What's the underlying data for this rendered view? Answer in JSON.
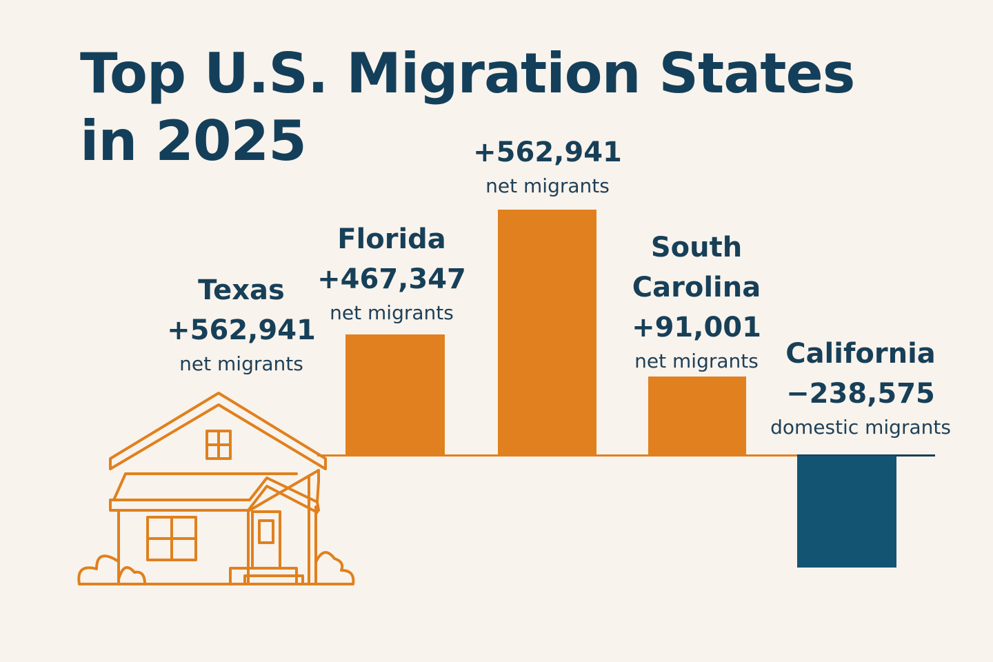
{
  "chart_data": {
    "type": "bar",
    "title": "Top U.S. Migration States in 2025",
    "title_lines": [
      "Top U.S. Migration States",
      "in 2025"
    ],
    "labels": [
      {
        "name": "Texas",
        "value_label": "+562,941",
        "unit": "net migrants",
        "value": 562941,
        "bar": false
      },
      {
        "name": "Florida",
        "value_label": "+467,347",
        "unit": "net migrants",
        "value": 467347,
        "bar": true
      },
      {
        "name": "",
        "value_label": "+562,941",
        "unit": "net migrants",
        "value": 562941,
        "bar": true
      },
      {
        "name_lines": [
          "South",
          "Carolina"
        ],
        "value_label": "+91,001",
        "unit": "net migrants",
        "value": 91001,
        "bar": true
      },
      {
        "name": "California",
        "value_label": "−238,575",
        "unit": "domestic migrants",
        "value": -238575,
        "bar": true
      }
    ],
    "xlabel": "",
    "ylabel": "",
    "grid": false,
    "legend": "none",
    "colors": {
      "positive": "#e0801e",
      "negative": "#135473",
      "text": "#173f58",
      "background": "#f8f3ec"
    },
    "icons": [
      "house-icon"
    ]
  }
}
